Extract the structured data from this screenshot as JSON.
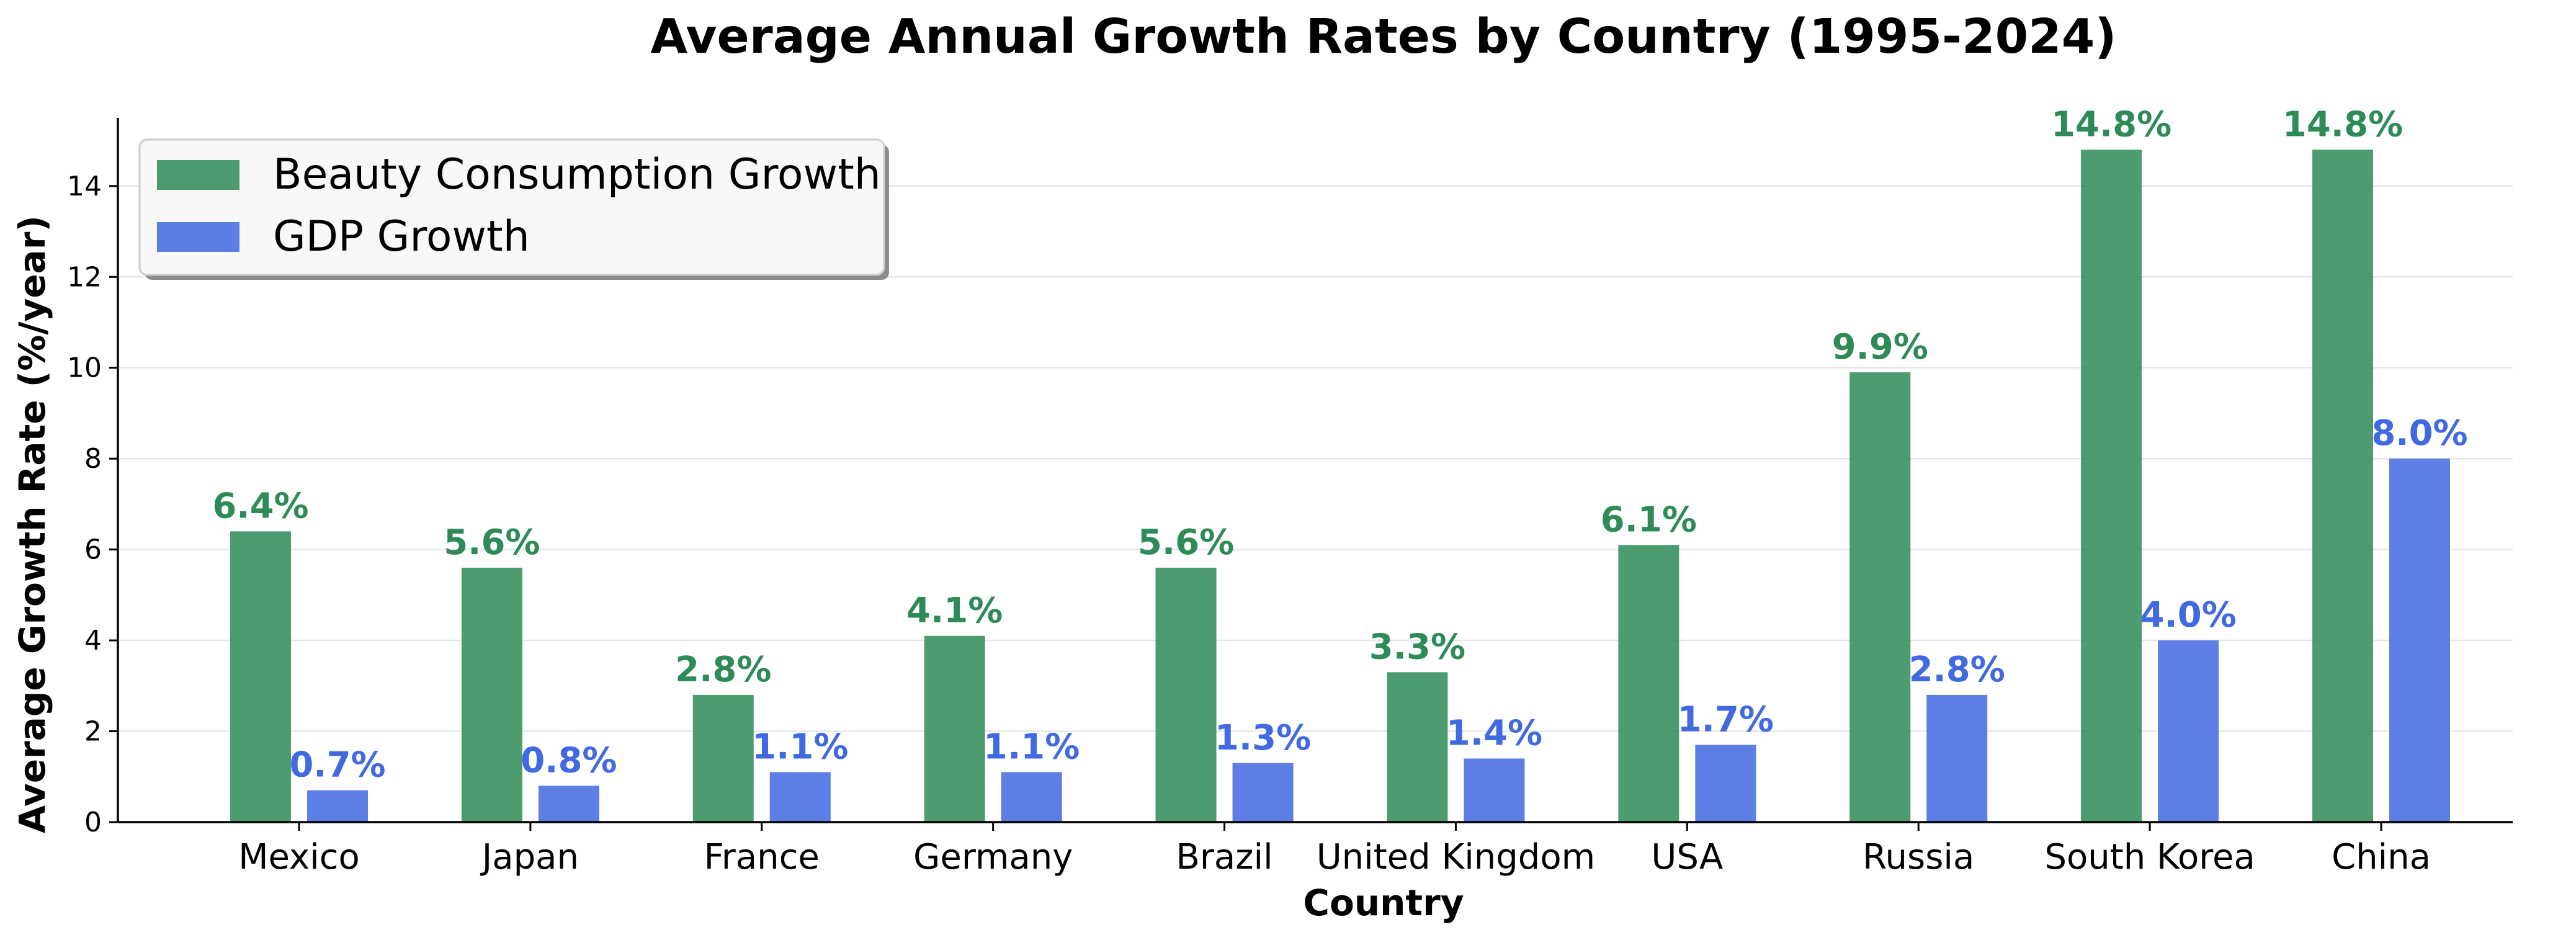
{
  "chart_data": {
    "type": "bar",
    "title": "Average Annual Growth Rates by Country (1995-2024)",
    "xlabel": "Country",
    "ylabel": "Average Growth Rate (%/year)",
    "ylim": [
      0,
      15.5
    ],
    "yticks": [
      0,
      2,
      4,
      6,
      8,
      10,
      12,
      14
    ],
    "grid": "y",
    "legend_position": "top-left",
    "categories": [
      "Mexico",
      "Japan",
      "France",
      "Germany",
      "Brazil",
      "United Kingdom",
      "USA",
      "Russia",
      "South Korea",
      "China"
    ],
    "series": [
      {
        "name": "Beauty Consumption Growth",
        "color": "#2e8b57",
        "values": [
          6.4,
          5.6,
          2.8,
          4.1,
          5.6,
          3.3,
          6.1,
          9.9,
          14.8,
          14.8
        ],
        "labels": [
          "6.4%",
          "5.6%",
          "2.8%",
          "4.1%",
          "5.6%",
          "3.3%",
          "6.1%",
          "9.9%",
          "14.8%",
          "14.8%"
        ]
      },
      {
        "name": "GDP Growth",
        "color": "#4169e1",
        "values": [
          0.7,
          0.8,
          1.1,
          1.1,
          1.3,
          1.4,
          1.7,
          2.8,
          4.0,
          8.0
        ],
        "labels": [
          "0.7%",
          "0.8%",
          "1.1%",
          "1.1%",
          "1.3%",
          "1.4%",
          "1.7%",
          "2.8%",
          "4.0%",
          "8.0%"
        ]
      }
    ]
  }
}
